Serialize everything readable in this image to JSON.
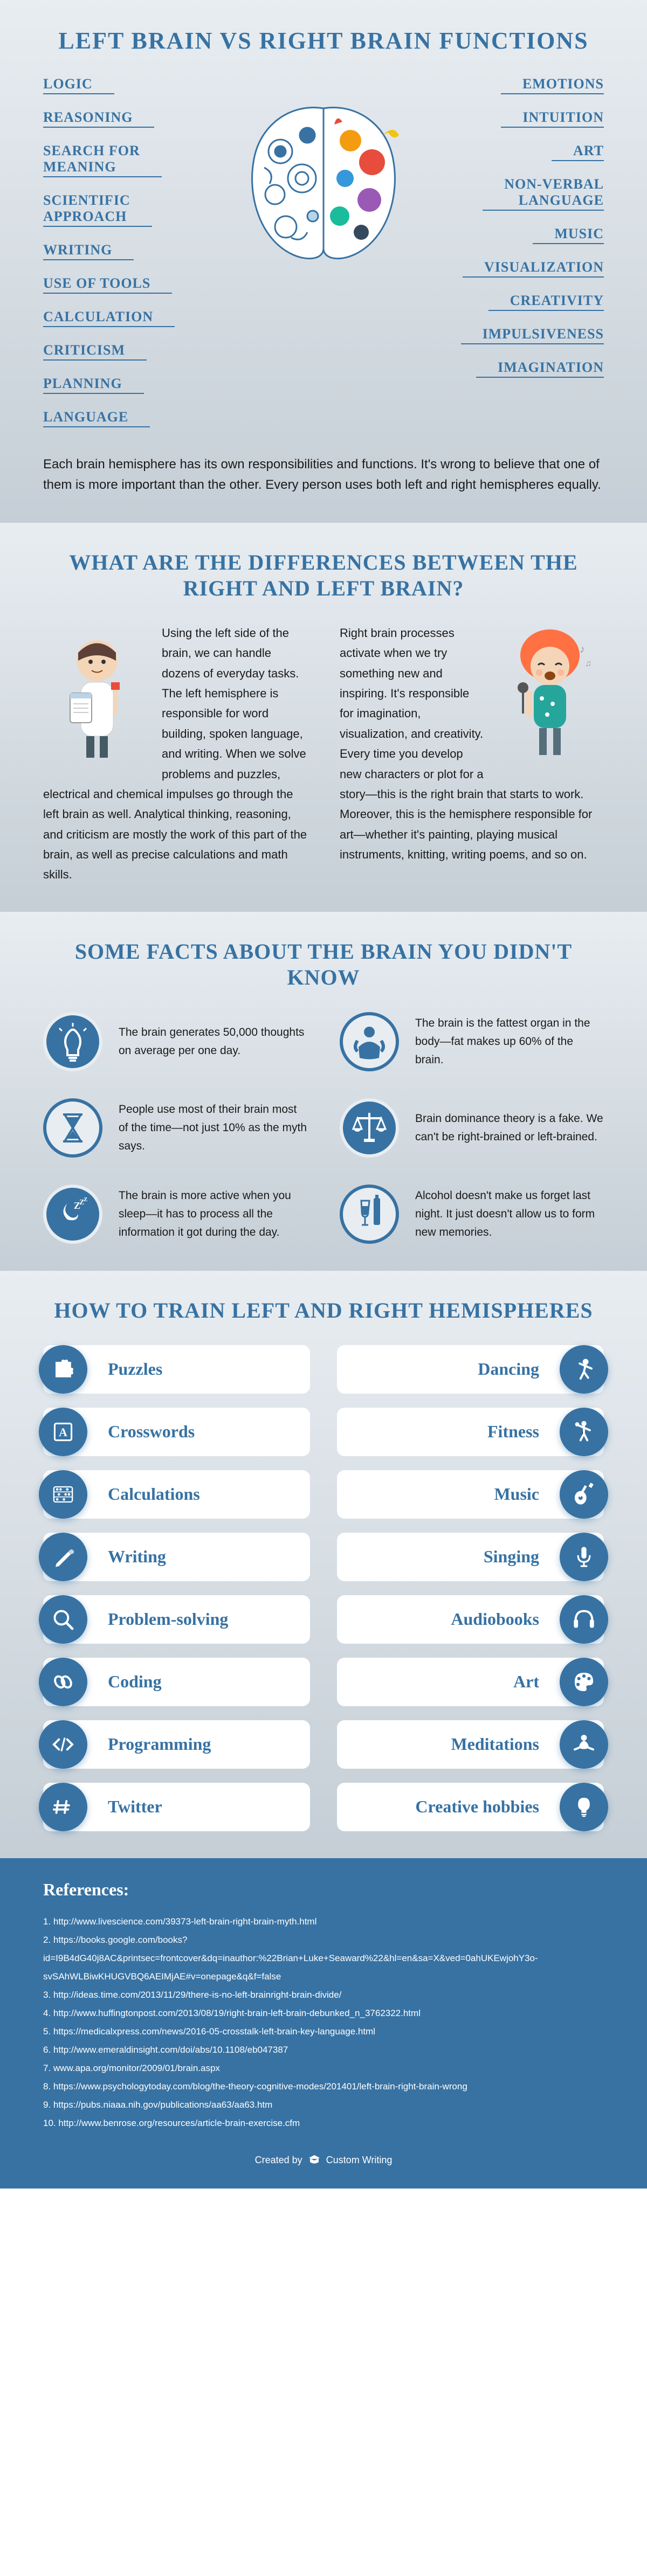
{
  "colors": {
    "primary": "#3772a3",
    "white": "#ffffff",
    "text": "#1a1a1a",
    "bg_top": "#e8edf1",
    "bg_bot": "#c5ced6",
    "brain_right_colors": [
      "#f39c12",
      "#e74c3c",
      "#3498db",
      "#9b59b6",
      "#1abc9c",
      "#34495e",
      "#f1c40f"
    ]
  },
  "title": "LEFT BRAIN VS RIGHT BRAIN FUNCTIONS",
  "left_functions": [
    "LOGIC",
    "REASONING",
    "SEARCH FOR\nMEANING",
    "SCIENTIFIC\nAPPROACH",
    "WRITING",
    "USE OF TOOLS",
    "CALCULATION",
    "CRITICISM",
    "PLANNING",
    "LANGUAGE"
  ],
  "right_functions": [
    "EMOTIONS",
    "INTUITION",
    "ART",
    "NON-VERBAL\nLANGUAGE",
    "MUSIC",
    "VISUALIZATION",
    "CREATIVITY",
    "IMPULSIVENESS",
    "IMAGINATION"
  ],
  "intro": "Each brain hemisphere has its own responsibilities and functions. It's wrong to believe that one of them is more important than the other. Every person uses both left and right hemispheres equally.",
  "diff_heading": "WHAT ARE THE DIFFERENCES BETWEEN THE RIGHT AND LEFT BRAIN?",
  "diff_left": "Using the left side of the brain, we can handle dozens of everyday tasks. The left hemisphere is responsible for word building, spoken language, and writing. When we solve problems and puzzles, electrical and chemical impulses go through the left brain as well. Analytical thinking, reasoning, and criticism are mostly the work of this part of the brain, as well as precise calculations and math skills.",
  "diff_right": "Right brain processes activate when we try something new and inspiring. It's responsible for imagination, visualization, and creativity. Every time you develop new characters or plot for a story—this is the right brain that starts to work. Moreover, this is the hemisphere responsible for art—whether it's painting, playing musical instruments, knitting, writing poems, and so on.",
  "facts_heading": "SOME FACTS ABOUT THE BRAIN YOU DIDN'T KNOW",
  "facts": [
    {
      "icon": "bulb",
      "bg": "#3772a3",
      "ring": "#e8edf1",
      "text": "The brain generates 50,000 thoughts on average per one day."
    },
    {
      "icon": "person",
      "bg": "#e8edf1",
      "ring": "#3772a3",
      "text": "The brain is the fattest organ in the body—fat makes up 60% of the brain."
    },
    {
      "icon": "hourglass",
      "bg": "#e8edf1",
      "ring": "#3772a3",
      "text": "People use most of their brain most of the time—not just 10% as the myth says."
    },
    {
      "icon": "scales",
      "bg": "#3772a3",
      "ring": "#e8edf1",
      "text": "Brain dominance theory is a fake. We can't be right-brained or left-brained."
    },
    {
      "icon": "sleep",
      "bg": "#3772a3",
      "ring": "#e8edf1",
      "text": "The brain is more active when you sleep—it has to process all the information it got during the day."
    },
    {
      "icon": "wine",
      "bg": "#e8edf1",
      "ring": "#3772a3",
      "text": "Alcohol doesn't make us forget last night. It just doesn't allow us to form new memories."
    }
  ],
  "train_heading": "HOW TO TRAIN LEFT AND RIGHT HEMISPHERES",
  "train_left": [
    "Puzzles",
    "Crosswords",
    "Calculations",
    "Writing",
    "Problem-solving",
    "Coding",
    "Programming",
    "Twitter"
  ],
  "train_right": [
    "Dancing",
    "Fitness",
    "Music",
    "Singing",
    "Audiobooks",
    "Art",
    "Meditations",
    "Creative hobbies"
  ],
  "train_icons_left": [
    "puzzle",
    "letter",
    "abacus",
    "pencil",
    "magnifier",
    "chain",
    "code",
    "hash"
  ],
  "train_icons_right": [
    "dance",
    "fitness",
    "guitar",
    "mic",
    "headphones",
    "palette",
    "meditate",
    "bulb2"
  ],
  "refs_title": "References:",
  "references": [
    "http://www.livescience.com/39373-left-brain-right-brain-myth.html",
    "https://books.google.com/books?id=I9B4dG40j8AC&printsec=frontcover&dq=inauthor:%22Brian+Luke+Seaward%22&hl=en&sa=X&ved=0ahUKEwjohY3o-svSAhWLBiwKHUGVBQ6AEIMjAE#v=onepage&q&f=false",
    "http://ideas.time.com/2013/11/29/there-is-no-left-brainright-brain-divide/",
    "http://www.huffingtonpost.com/2013/08/19/right-brain-left-brain-debunked_n_3762322.html",
    "https://medicalxpress.com/news/2016-05-crosstalk-left-brain-key-language.html",
    "http://www.emeraldinsight.com/doi/abs/10.1108/eb047387",
    "www.apa.org/monitor/2009/01/brain.aspx",
    "https://www.psychologytoday.com/blog/the-theory-cognitive-modes/201401/left-brain-right-brain-wrong",
    "https://pubs.niaaa.nih.gov/publications/aa63/aa63.htm",
    "http://www.benrose.org/resources/article-brain-exercise.cfm"
  ],
  "created_by": "Created by",
  "created_name": "Custom Writing"
}
